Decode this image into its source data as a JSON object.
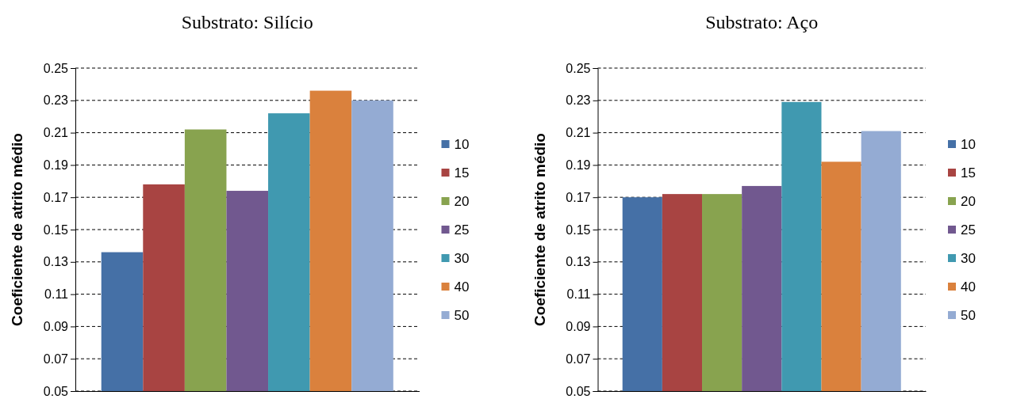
{
  "chart_data": [
    {
      "type": "bar",
      "title": "Substrato: Silício",
      "ylabel": "Coeficiente de atrito médio",
      "categories": [
        null
      ],
      "ylim": [
        0.05,
        0.25
      ],
      "yticks": [
        0.05,
        0.07,
        0.09,
        0.11,
        0.13,
        0.15,
        0.17,
        0.19,
        0.21,
        0.23,
        0.25
      ],
      "grid": "y",
      "legend": "right",
      "series": [
        {
          "name": "10",
          "color": "#4570a6",
          "values": [
            0.136
          ]
        },
        {
          "name": "15",
          "color": "#a84442",
          "values": [
            0.178
          ]
        },
        {
          "name": "20",
          "color": "#88a34f",
          "values": [
            0.212
          ]
        },
        {
          "name": "25",
          "color": "#71588f",
          "values": [
            0.174
          ]
        },
        {
          "name": "30",
          "color": "#4099b0",
          "values": [
            0.222
          ]
        },
        {
          "name": "40",
          "color": "#da813d",
          "values": [
            0.236
          ]
        },
        {
          "name": "50",
          "color": "#94abd3",
          "values": [
            0.23
          ]
        }
      ]
    },
    {
      "type": "bar",
      "title": "Substrato: Aço",
      "ylabel": "Coeficiente de atrito médio",
      "categories": [
        null
      ],
      "ylim": [
        0.05,
        0.25
      ],
      "yticks": [
        0.05,
        0.07,
        0.09,
        0.11,
        0.13,
        0.15,
        0.17,
        0.19,
        0.21,
        0.23,
        0.25
      ],
      "grid": "y",
      "legend": "right",
      "series": [
        {
          "name": "10",
          "color": "#4570a6",
          "values": [
            0.17
          ]
        },
        {
          "name": "15",
          "color": "#a84442",
          "values": [
            0.172
          ]
        },
        {
          "name": "20",
          "color": "#88a34f",
          "values": [
            0.172
          ]
        },
        {
          "name": "25",
          "color": "#71588f",
          "values": [
            0.177
          ]
        },
        {
          "name": "30",
          "color": "#4099b0",
          "values": [
            0.229
          ]
        },
        {
          "name": "40",
          "color": "#da813d",
          "values": [
            0.192
          ]
        },
        {
          "name": "50",
          "color": "#94abd3",
          "values": [
            0.211
          ]
        }
      ]
    }
  ]
}
